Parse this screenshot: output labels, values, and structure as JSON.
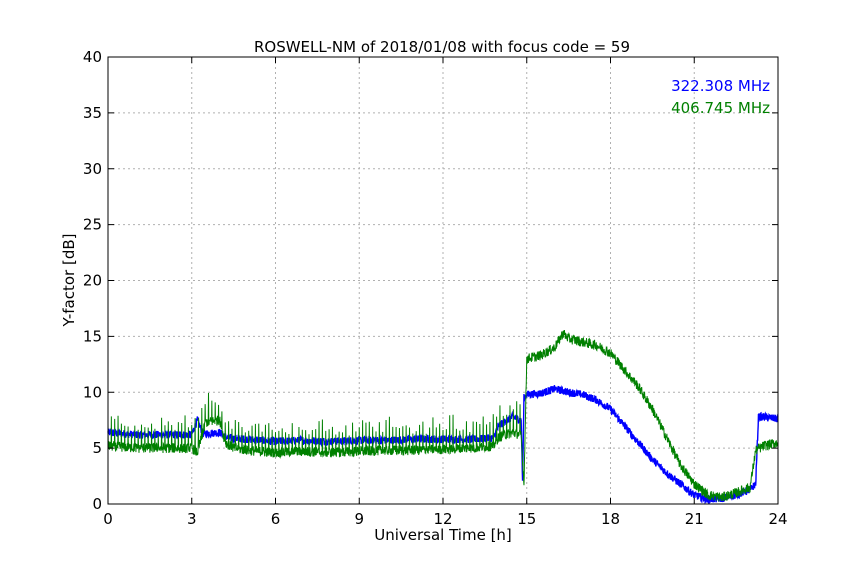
{
  "chart_data": {
    "type": "line",
    "title": "ROSWELL-NM of 2018/01/08 with focus code = 59",
    "xlabel": "Universal Time [h]",
    "ylabel": "Y-factor [dB]",
    "xlim": [
      0,
      24
    ],
    "ylim": [
      0,
      40
    ],
    "xticks": [
      0,
      3,
      6,
      9,
      12,
      15,
      18,
      21,
      24
    ],
    "yticks": [
      0,
      5,
      10,
      15,
      20,
      25,
      30,
      35,
      40
    ],
    "grid": true,
    "legend_position": "top-right",
    "series": [
      {
        "name": "322.308 MHz",
        "color": "#0000ff",
        "x": [
          0,
          0.5,
          1,
          2,
          3,
          3.2,
          3.4,
          4,
          4.3,
          5,
          6,
          7,
          8,
          9,
          10,
          11,
          12,
          13,
          13.8,
          14,
          14.5,
          14.8,
          14.85,
          14.9,
          15,
          15.5,
          16,
          16.5,
          17,
          17.5,
          18,
          18.5,
          19,
          19.5,
          20,
          20.5,
          21,
          21.5,
          22,
          22.5,
          23,
          23.2,
          23.3,
          23.5,
          24
        ],
        "y": [
          6.4,
          6.3,
          6.2,
          6.2,
          6.2,
          7.5,
          6.3,
          6.4,
          5.9,
          5.8,
          5.6,
          5.7,
          5.6,
          5.7,
          5.7,
          5.8,
          5.8,
          5.8,
          5.9,
          7.0,
          7.8,
          7.5,
          2.0,
          9.5,
          9.8,
          9.9,
          10.3,
          10.0,
          9.8,
          9.3,
          8.5,
          7.0,
          5.5,
          4.0,
          2.8,
          1.8,
          0.8,
          0.4,
          0.5,
          0.8,
          1.3,
          1.8,
          7.8,
          7.8,
          7.6
        ]
      },
      {
        "name": "406.745 MHz",
        "color": "#008000",
        "x": [
          0,
          1,
          2,
          3,
          3.2,
          3.5,
          4,
          4.2,
          4.5,
          5,
          6,
          7,
          8,
          9,
          10,
          11,
          12,
          13,
          13.8,
          14,
          14.5,
          14.8,
          14.9,
          15,
          15.5,
          16,
          16.3,
          16.5,
          17,
          17.5,
          18,
          18.5,
          19,
          19.5,
          20,
          20.5,
          21,
          21.5,
          22,
          22.5,
          23,
          23.2,
          23.5,
          24
        ],
        "y": [
          5.2,
          5.0,
          5.0,
          5.0,
          4.6,
          7.3,
          7.5,
          5.5,
          5.0,
          4.8,
          4.6,
          4.7,
          4.6,
          4.7,
          4.8,
          4.8,
          4.9,
          5.0,
          5.2,
          6.0,
          6.4,
          6.2,
          1.8,
          13.0,
          13.3,
          14.0,
          15.3,
          14.8,
          14.5,
          14.2,
          13.5,
          12.0,
          10.5,
          8.5,
          6.0,
          3.5,
          1.8,
          0.8,
          0.6,
          1.0,
          1.5,
          4.8,
          5.2,
          5.5
        ]
      }
    ]
  }
}
